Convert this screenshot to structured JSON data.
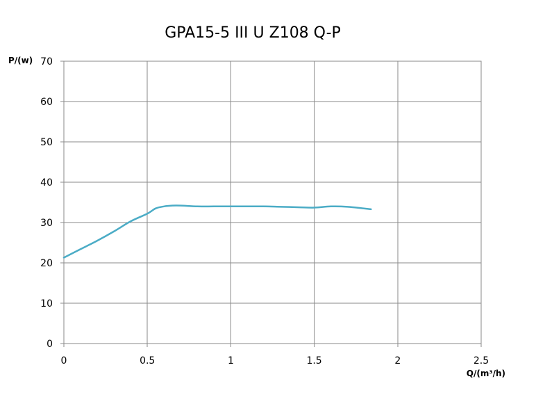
{
  "chart_data": {
    "type": "line",
    "title": "GPA15-5 III U Z108 Q-P",
    "xlabel": "Q/(m³/h)",
    "ylabel": "P/(w)",
    "xlim": [
      0,
      2.5
    ],
    "ylim": [
      0,
      70
    ],
    "x_ticks": [
      "0",
      "0.5",
      "1",
      "1.5",
      "2",
      "2.5"
    ],
    "y_ticks": [
      "0",
      "10",
      "20",
      "30",
      "40",
      "50",
      "60",
      "70"
    ],
    "grid": true,
    "legend": "none",
    "series": [
      {
        "color": "#4BACC6",
        "x": [
          0.0,
          0.1,
          0.2,
          0.3,
          0.4,
          0.5,
          0.55,
          0.6,
          0.65,
          0.7,
          0.8,
          0.9,
          1.0,
          1.1,
          1.2,
          1.3,
          1.4,
          1.5,
          1.6,
          1.7,
          1.84
        ],
        "y": [
          21.3,
          23.4,
          25.5,
          27.8,
          30.3,
          32.2,
          33.5,
          34.0,
          34.2,
          34.2,
          34.0,
          34.0,
          34.0,
          34.0,
          34.0,
          33.9,
          33.8,
          33.7,
          34.0,
          33.9,
          33.3
        ]
      }
    ]
  }
}
